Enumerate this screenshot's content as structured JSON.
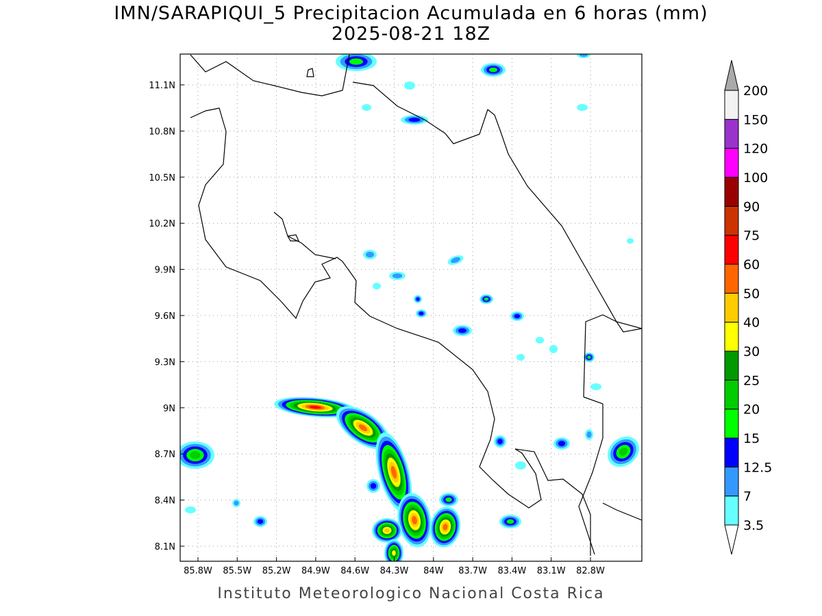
{
  "title": "IMN/SARAPIQUI_5 Precipitacion Acumulada en 6 horas (mm)",
  "subtitle": "2025-08-21 18Z",
  "footer": "Instituto Meteorologico Nacional Costa Rica",
  "lat_ticks": [
    "11.1N",
    "10.8N",
    "10.5N",
    "10.2N",
    "9.9N",
    "9.6N",
    "9.3N",
    "9N",
    "8.7N",
    "8.4N",
    "8.1N"
  ],
  "lon_ticks": [
    "85.8W",
    "85.5W",
    "85.2W",
    "84.9W",
    "84.6W",
    "84.3W",
    "84W",
    "83.7W",
    "83.4W",
    "83.1W",
    "82.8W"
  ],
  "legend": {
    "labels": [
      "3.5",
      "7",
      "12.5",
      "15",
      "20",
      "25",
      "30",
      "40",
      "50",
      "60",
      "75",
      "90",
      "100",
      "120",
      "150",
      "200"
    ],
    "colors": [
      "#66ffff",
      "#3399ff",
      "#0000ff",
      "#00ff00",
      "#00cc00",
      "#009900",
      "#ffff00",
      "#ffcc00",
      "#ff6600",
      "#ff0000",
      "#cc3300",
      "#990000",
      "#ff00ff",
      "#9933cc",
      "#f2f2f2"
    ],
    "over_color": "#aaaaaa"
  }
}
